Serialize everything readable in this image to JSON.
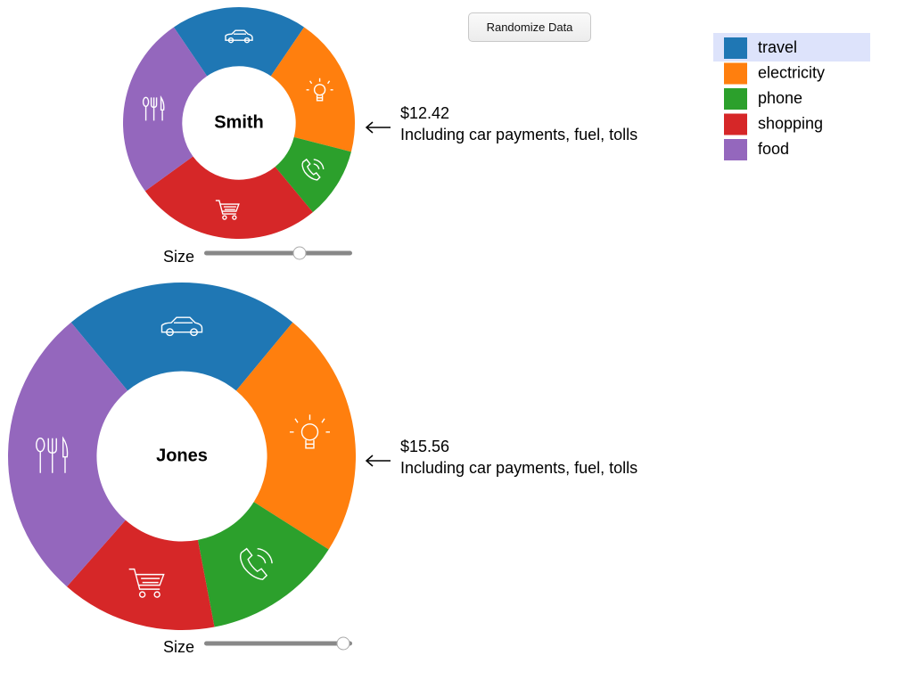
{
  "controls": {
    "button": "Randomize Data"
  },
  "chart_data": [
    {
      "type": "pie",
      "center_label": "Smith",
      "annotation": "$12.42",
      "annotation_note": "Including car payments, fuel, tolls",
      "slider_label": "Size",
      "categories": [
        "travel",
        "electricity",
        "phone",
        "shopping",
        "food"
      ],
      "colors": [
        "#1f77b4",
        "#ff7f0e",
        "#2ca02c",
        "#d62728",
        "#9467bd"
      ],
      "values": [
        19,
        19.5,
        10,
        26,
        25.5
      ]
    },
    {
      "type": "pie",
      "center_label": "Jones",
      "annotation": "$15.56",
      "annotation_note": "Including car payments, fuel, tolls",
      "slider_label": "Size",
      "categories": [
        "travel",
        "electricity",
        "phone",
        "shopping",
        "food"
      ],
      "colors": [
        "#1f77b4",
        "#ff7f0e",
        "#2ca02c",
        "#d62728",
        "#9467bd"
      ],
      "values": [
        22,
        23,
        13,
        14.5,
        27.5
      ]
    }
  ]
}
